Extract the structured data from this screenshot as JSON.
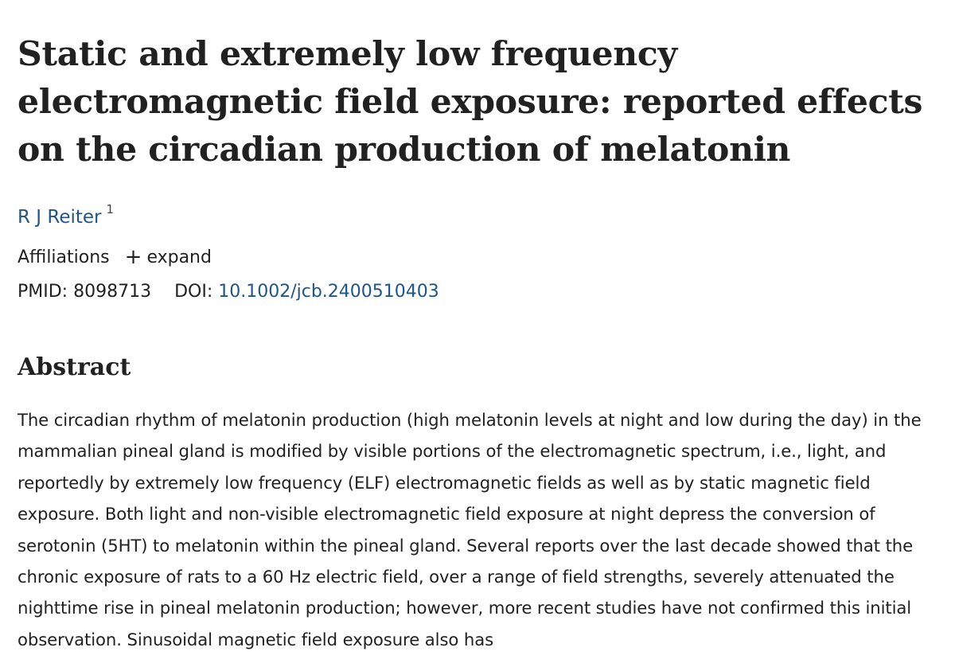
{
  "article": {
    "title": "Static and extremely low frequency electromagnetic field exposure: reported effects on the circadian production of melatonin",
    "authors": [
      {
        "name": "R J Reiter",
        "affiliation_ref": "1"
      }
    ],
    "affiliations_label": "Affiliations",
    "expand_label": "expand",
    "pmid_label": "PMID:",
    "pmid": "8098713",
    "doi_label": "DOI:",
    "doi": "10.1002/jcb.2400510403"
  },
  "abstract": {
    "heading": "Abstract",
    "text": "The circadian rhythm of melatonin production (high melatonin levels at night and low during the day) in the mammalian pineal gland is modified by visible portions of the electromagnetic spectrum, i.e., light, and reportedly by extremely low frequency (ELF) electromagnetic fields as well as by static magnetic field exposure. Both light and non-visible electromagnetic field exposure at night depress the conversion of serotonin (5HT) to melatonin within the pineal gland. Several reports over the last decade showed that the chronic exposure of rats to a 60 Hz electric field, over a range of field strengths, severely attenuated the nighttime rise in pineal melatonin production; however, more recent studies have not confirmed this initial observation. Sinusoidal magnetic field exposure also has"
  },
  "icons": {
    "expand": "plus-icon"
  },
  "colors": {
    "link": "#20558a",
    "text": "#212121"
  }
}
